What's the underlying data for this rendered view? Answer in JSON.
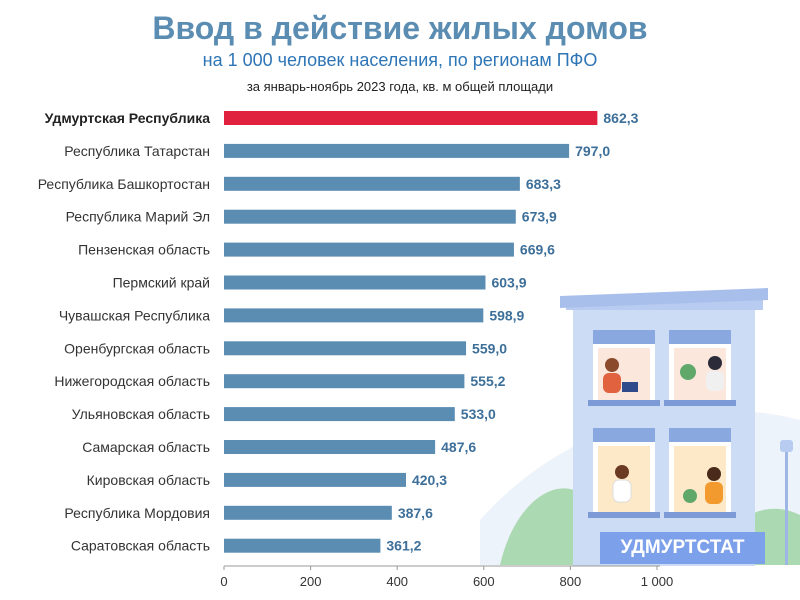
{
  "title": "Ввод в действие жилых домов",
  "subtitle": "на 1 000 человек населения, по регионам ПФО",
  "period": "за январь-ноябрь 2023 года, кв. м общей площади",
  "brand": "УДМУРТСТАТ",
  "colors": {
    "highlight": "#e0223f",
    "bar": "#5b8db3",
    "value": "#3d6f99",
    "title": "#5b8db3"
  },
  "chart_data": {
    "type": "bar",
    "orientation": "horizontal",
    "categories": [
      "Удмуртская Республика",
      "Республика Татарстан",
      "Республика Башкортостан",
      "Республика Марий Эл",
      "Пензенская область",
      "Пермский край",
      "Чувашская Республика",
      "Оренбургская область",
      "Нижегородская область",
      "Ульяновская область",
      "Самарская область",
      "Кировская область",
      "Республика Мордовия",
      "Саратовская область"
    ],
    "values": [
      862.3,
      797.0,
      683.3,
      673.9,
      669.6,
      603.9,
      598.9,
      559.0,
      555.2,
      533.0,
      487.6,
      420.3,
      387.6,
      361.2
    ],
    "value_labels": [
      "862,3",
      "797,0",
      "683,3",
      "673,9",
      "669,6",
      "603,9",
      "598,9",
      "559,0",
      "555,2",
      "533,0",
      "487,6",
      "420,3",
      "387,6",
      "361,2"
    ],
    "highlight_index": 0,
    "xlim": [
      0,
      1000
    ],
    "xticks": [
      0,
      200,
      400,
      600,
      800,
      1000
    ],
    "xtick_labels": [
      "0",
      "200",
      "400",
      "600",
      "800",
      "1 000"
    ],
    "grid": false,
    "legend": "none"
  }
}
